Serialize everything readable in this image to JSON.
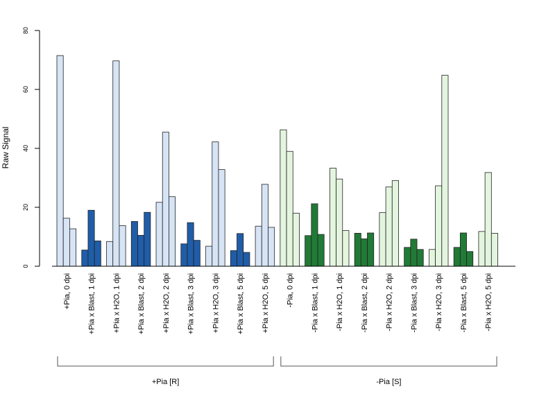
{
  "chart_data": {
    "type": "bar",
    "ylabel": "Raw Signal",
    "ylim": [
      0,
      80
    ],
    "yticks": [
      0,
      20,
      40,
      60,
      80
    ],
    "categories": [
      "+Pia, 0 dpi",
      "+Pia x Blast, 1 dpi",
      "+Pia x H2O, 1 dpi",
      "+Pia x Blast, 2 dpi",
      "+Pia x H2O, 2 dpi",
      "+Pia x Blast, 3 dpi",
      "+Pia x H2O, 3 dpi",
      "+Pia x Blast, 5 dpi",
      "+Pia x H2O, 5 dpi",
      "-Pia, 0 dpi",
      "-Pia x Blast, 1 dpi",
      "-Pia x H2O, 1 dpi",
      "-Pia x Blast, 2 dpi",
      "-Pia x H2O, 2 dpi",
      "-Pia x Blast, 3 dpi",
      "-Pia x H2O, 3 dpi",
      "-Pia x Blast, 5 dpi",
      "-Pia x H2O, 5 dpi"
    ],
    "values": [
      [
        71.5,
        16.3,
        12.7
      ],
      [
        5.5,
        19.0,
        8.6
      ],
      [
        8.4,
        69.7,
        13.8
      ],
      [
        15.2,
        10.5,
        18.3
      ],
      [
        21.7,
        45.5,
        23.6
      ],
      [
        7.6,
        14.8,
        8.8
      ],
      [
        6.8,
        42.2,
        32.8
      ],
      [
        5.3,
        11.1,
        4.7
      ],
      [
        13.6,
        27.8,
        13.2
      ],
      [
        46.3,
        39.0,
        18.0
      ],
      [
        10.4,
        21.2,
        10.8
      ],
      [
        33.3,
        29.6,
        12.1
      ],
      [
        11.2,
        9.3,
        11.3
      ],
      [
        18.2,
        26.9,
        29.1
      ],
      [
        6.4,
        9.2,
        5.7
      ],
      [
        5.7,
        27.3,
        64.8
      ],
      [
        6.4,
        11.3,
        5.0
      ],
      [
        11.8,
        31.8,
        11.2
      ]
    ],
    "bar_colors": [
      "#d6e4f5",
      "#1f5da8",
      "#d6e4f5",
      "#1f5da8",
      "#d6e4f5",
      "#1f5da8",
      "#d6e4f5",
      "#1f5da8",
      "#d6e4f5",
      "#e3f5de",
      "#217a36",
      "#e3f5de",
      "#217a36",
      "#e3f5de",
      "#217a36",
      "#e3f5de",
      "#217a36",
      "#e3f5de"
    ],
    "groups": [
      {
        "label": "+Pia [R]",
        "from": 0,
        "to": 8
      },
      {
        "label": "-Pia [S]",
        "from": 9,
        "to": 17
      }
    ]
  }
}
